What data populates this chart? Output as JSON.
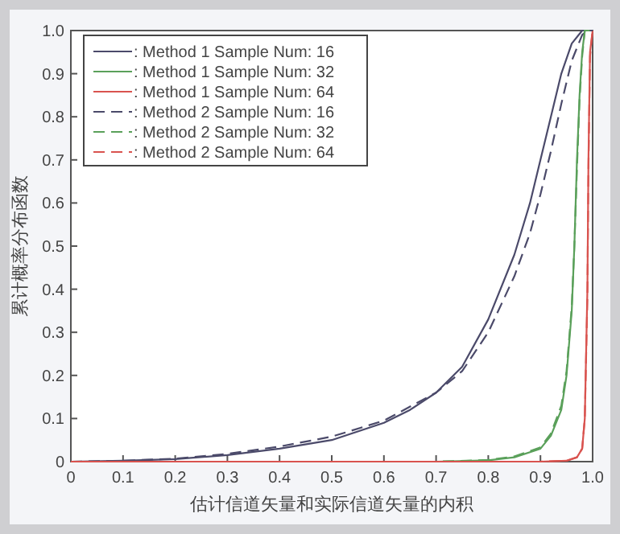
{
  "chart_data": {
    "type": "line",
    "xlabel": "估计信道矢量和实际信道矢量的内积",
    "ylabel": "累计概率分布函数",
    "xlim": [
      0,
      1
    ],
    "ylim": [
      0,
      1
    ],
    "xticks": [
      0,
      0.1,
      0.2,
      0.3,
      0.4,
      0.5,
      0.6,
      0.7,
      0.8,
      0.9,
      {
        "value": 1,
        "label": "1.0"
      }
    ],
    "yticks": [
      0,
      0.1,
      0.2,
      0.3,
      0.4,
      0.5,
      0.6,
      0.7,
      0.8,
      0.9,
      {
        "value": 1,
        "label": "1.0"
      }
    ],
    "grid": false,
    "legend": "top left",
    "marker": "none",
    "series": [
      {
        "name": ": Method 1 Sample Num: 16",
        "color": "#4b4a6a",
        "line_style": "solid",
        "x": [
          0,
          0.1,
          0.2,
          0.3,
          0.4,
          0.5,
          0.6,
          0.65,
          0.7,
          0.75,
          0.8,
          0.85,
          0.88,
          0.9,
          0.92,
          0.94,
          0.96,
          0.98,
          1.0
        ],
        "values": [
          0,
          0.002,
          0.006,
          0.015,
          0.03,
          0.05,
          0.09,
          0.12,
          0.16,
          0.22,
          0.33,
          0.48,
          0.6,
          0.7,
          0.8,
          0.9,
          0.97,
          1.0,
          1.0
        ]
      },
      {
        "name": ": Method 1 Sample Num: 32",
        "color": "#5aa05a",
        "line_style": "solid",
        "x": [
          0,
          0.7,
          0.8,
          0.85,
          0.9,
          0.92,
          0.94,
          0.95,
          0.96,
          0.965,
          0.97,
          0.975,
          0.98,
          0.985,
          1.0
        ],
        "values": [
          0,
          0,
          0.003,
          0.01,
          0.03,
          0.06,
          0.12,
          0.2,
          0.35,
          0.5,
          0.7,
          0.85,
          0.95,
          1.0,
          1.0
        ]
      },
      {
        "name": ": Method 1 Sample Num: 64",
        "color": "#d9534f",
        "line_style": "solid",
        "x": [
          0,
          0.9,
          0.95,
          0.97,
          0.98,
          0.985,
          0.99,
          0.992,
          0.995,
          1.0
        ],
        "values": [
          0,
          0,
          0.002,
          0.01,
          0.03,
          0.1,
          0.4,
          0.7,
          0.95,
          1.0
        ]
      },
      {
        "name": ": Method 2 Sample Num: 16",
        "color": "#4b4a6a",
        "line_style": "dashed",
        "x": [
          0,
          0.1,
          0.2,
          0.3,
          0.4,
          0.5,
          0.6,
          0.7,
          0.75,
          0.8,
          0.85,
          0.88,
          0.9,
          0.92,
          0.94,
          0.96,
          0.98,
          0.99,
          1.0
        ],
        "values": [
          0,
          0.002,
          0.007,
          0.018,
          0.035,
          0.058,
          0.095,
          0.16,
          0.21,
          0.3,
          0.43,
          0.53,
          0.62,
          0.72,
          0.83,
          0.93,
          0.99,
          1.0,
          1.0
        ]
      },
      {
        "name": ": Method 2 Sample Num: 32",
        "color": "#5aa05a",
        "line_style": "dashed",
        "x": [
          0,
          0.7,
          0.8,
          0.85,
          0.9,
          0.92,
          0.94,
          0.95,
          0.96,
          0.965,
          0.97,
          0.975,
          0.98,
          0.985,
          1.0
        ],
        "values": [
          0,
          0,
          0.004,
          0.012,
          0.033,
          0.065,
          0.13,
          0.21,
          0.36,
          0.5,
          0.68,
          0.84,
          0.94,
          1.0,
          1.0
        ]
      },
      {
        "name": ": Method 2 Sample Num: 64",
        "color": "#d9534f",
        "line_style": "dashed",
        "x": [
          0,
          0.9,
          0.95,
          0.97,
          0.98,
          0.985,
          0.99,
          0.992,
          0.995,
          1.0
        ],
        "values": [
          0,
          0,
          0.002,
          0.01,
          0.03,
          0.1,
          0.38,
          0.68,
          0.94,
          1.0
        ]
      }
    ]
  }
}
